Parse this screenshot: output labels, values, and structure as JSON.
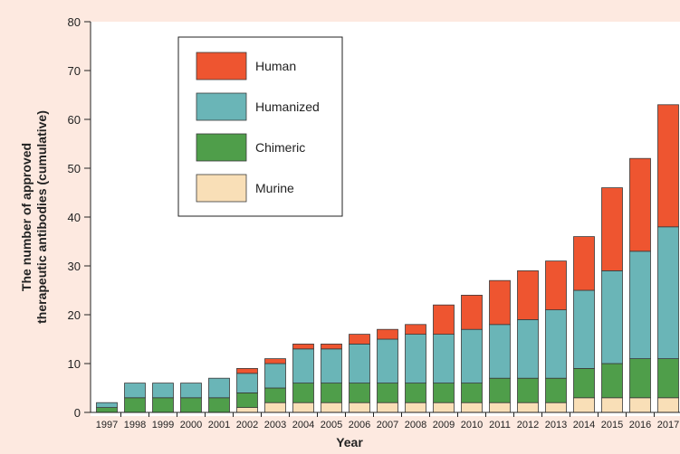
{
  "chart_data": {
    "type": "bar",
    "stacked": true,
    "title": "",
    "xlabel": "Year",
    "ylabel_lines": [
      "The number of approved",
      "therapeutic antibodies (cumulative)"
    ],
    "ylim": [
      0,
      80
    ],
    "yticks": [
      0,
      10,
      20,
      30,
      40,
      50,
      60,
      70,
      80
    ],
    "grid": false,
    "legend_position": "top-left",
    "categories": [
      "1997",
      "1998",
      "1999",
      "2000",
      "2001",
      "2002",
      "2003",
      "2004",
      "2005",
      "2006",
      "2007",
      "2008",
      "2009",
      "2010",
      "2011",
      "2012",
      "2013",
      "2014",
      "2015",
      "2016",
      "2017"
    ],
    "series": [
      {
        "name": "Murine",
        "color": "#f9dfb7",
        "values": [
          0,
          0,
          0,
          0,
          0,
          1,
          2,
          2,
          2,
          2,
          2,
          2,
          2,
          2,
          2,
          2,
          2,
          3,
          3,
          3,
          3
        ]
      },
      {
        "name": "Chimeric",
        "color": "#4f9e4a",
        "values": [
          1,
          3,
          3,
          3,
          3,
          3,
          3,
          4,
          4,
          4,
          4,
          4,
          4,
          4,
          5,
          5,
          5,
          6,
          7,
          8,
          8
        ]
      },
      {
        "name": "Humanized",
        "color": "#6ab5b7",
        "values": [
          1,
          3,
          3,
          3,
          4,
          4,
          5,
          7,
          7,
          8,
          9,
          10,
          10,
          11,
          11,
          12,
          14,
          16,
          19,
          22,
          27
        ]
      },
      {
        "name": "Human",
        "color": "#ee5530",
        "values": [
          0,
          0,
          0,
          0,
          0,
          1,
          1,
          1,
          1,
          2,
          2,
          2,
          6,
          7,
          9,
          10,
          10,
          11,
          17,
          19,
          25
        ]
      }
    ],
    "legend_order": [
      "Human",
      "Humanized",
      "Chimeric",
      "Murine"
    ]
  }
}
